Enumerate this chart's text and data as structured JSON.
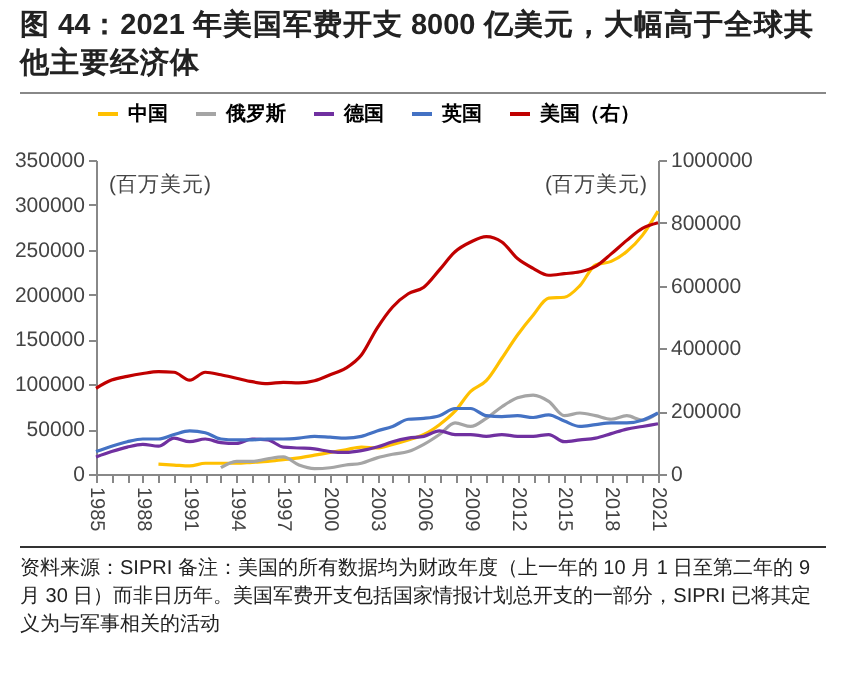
{
  "chart_data": {
    "type": "line",
    "title": "图 44：2021 年美国军费开支 8000 亿美元，大幅高于全球其他主要经济体",
    "x": [
      1985,
      1986,
      1987,
      1988,
      1989,
      1990,
      1991,
      1992,
      1993,
      1994,
      1995,
      1996,
      1997,
      1998,
      1999,
      2000,
      2001,
      2002,
      2003,
      2004,
      2005,
      2006,
      2007,
      2008,
      2009,
      2010,
      2011,
      2012,
      2013,
      2014,
      2015,
      2016,
      2017,
      2018,
      2019,
      2020,
      2021
    ],
    "series": [
      {
        "name": "中国",
        "color": "#ffc000",
        "values": [
          null,
          null,
          null,
          null,
          11000,
          10000,
          9000,
          12000,
          12000,
          12000,
          13000,
          14000,
          16000,
          18000,
          21000,
          24000,
          27000,
          30000,
          29000,
          33000,
          38000,
          44000,
          55000,
          70000,
          92000,
          104000,
          129000,
          155000,
          177000,
          196000,
          197000,
          210000,
          233000,
          237000,
          248000,
          266000,
          293000
        ]
      },
      {
        "name": "俄罗斯",
        "color": "#a5a5a5",
        "values": [
          null,
          null,
          null,
          null,
          null,
          null,
          null,
          null,
          7000,
          14000,
          14000,
          17000,
          19000,
          10000,
          6000,
          7000,
          10000,
          12000,
          18000,
          22000,
          25000,
          33000,
          44000,
          57000,
          53000,
          62000,
          75000,
          85000,
          88000,
          81000,
          65000,
          68000,
          65000,
          61000,
          65000,
          60000,
          68000
        ]
      },
      {
        "name": "德国",
        "color": "#7030a0",
        "values": [
          19000,
          25000,
          30000,
          33000,
          31000,
          40000,
          36000,
          39000,
          35000,
          34000,
          39000,
          38000,
          30000,
          29000,
          28000,
          25000,
          24000,
          26000,
          30000,
          36000,
          40000,
          42000,
          48000,
          44000,
          44000,
          42000,
          44000,
          42000,
          42000,
          44000,
          36000,
          38000,
          40000,
          45000,
          50000,
          53000,
          56000
        ]
      },
      {
        "name": "英国",
        "color": "#4472c4",
        "values": [
          25000,
          31000,
          36000,
          39000,
          39000,
          44000,
          48000,
          46000,
          39000,
          38000,
          38000,
          39000,
          39000,
          40000,
          42000,
          41000,
          40000,
          42000,
          48000,
          53000,
          61000,
          62000,
          65000,
          73000,
          73000,
          65000,
          64000,
          65000,
          63000,
          66000,
          59000,
          53000,
          55000,
          57000,
          57000,
          60000,
          68000
        ]
      },
      {
        "name": "美国（右）",
        "color": "#c00000",
        "axis": "y2",
        "values": [
          273000,
          299000,
          311000,
          320000,
          326000,
          324000,
          299000,
          324000,
          316000,
          305000,
          294000,
          288000,
          292000,
          290000,
          297000,
          316000,
          337000,
          379000,
          464000,
          532000,
          574000,
          595000,
          650000,
          708000,
          739000,
          756000,
          739000,
          686000,
          655000,
          633000,
          638000,
          644000,
          661000,
          701000,
          744000,
          782000,
          800000
        ]
      }
    ],
    "xlim": [
      1985,
      2021
    ],
    "xticks": [
      1985,
      {
        "value": 1986,
        "label": null
      },
      {
        "value": 1987,
        "label": null
      },
      1988,
      {
        "value": 1989,
        "label": null
      },
      {
        "value": 1990,
        "label": null
      },
      1991,
      {
        "value": 1992,
        "label": null
      },
      {
        "value": 1993,
        "label": null
      },
      1994,
      {
        "value": 1995,
        "label": null
      },
      {
        "value": 1996,
        "label": null
      },
      1997,
      {
        "value": 1998,
        "label": null
      },
      {
        "value": 1999,
        "label": null
      },
      2000,
      {
        "value": 2001,
        "label": null
      },
      {
        "value": 2002,
        "label": null
      },
      2003,
      {
        "value": 2004,
        "label": null
      },
      {
        "value": 2005,
        "label": null
      },
      2006,
      {
        "value": 2007,
        "label": null
      },
      {
        "value": 2008,
        "label": null
      },
      2009,
      {
        "value": 2010,
        "label": null
      },
      {
        "value": 2011,
        "label": null
      },
      2012,
      {
        "value": 2013,
        "label": null
      },
      {
        "value": 2014,
        "label": null
      },
      2015,
      {
        "value": 2016,
        "label": null
      },
      {
        "value": 2017,
        "label": null
      },
      2018,
      {
        "value": 2019,
        "label": null
      },
      {
        "value": 2020,
        "label": null
      },
      2021
    ],
    "ylim": [
      0,
      350000
    ],
    "yticks": [
      0,
      50000,
      100000,
      150000,
      200000,
      250000,
      300000,
      350000
    ],
    "y2lim": [
      0,
      1000000
    ],
    "y2ticks": [
      0,
      200000,
      400000,
      600000,
      800000,
      1000000
    ],
    "ylabel": "(百万美元)",
    "y2label": "(百万美元)",
    "legend": "top",
    "annotations": [
      "资料来源：SIPRI 备注：美国的所有数据均为财政年度（上一年的 10 月 1 日至第二年的 9 月 30 日）而非日历年。美国军费开支包括国家情报计划总开支的一部分，SIPRI 已将其定义为与军事相关的活动"
    ]
  }
}
